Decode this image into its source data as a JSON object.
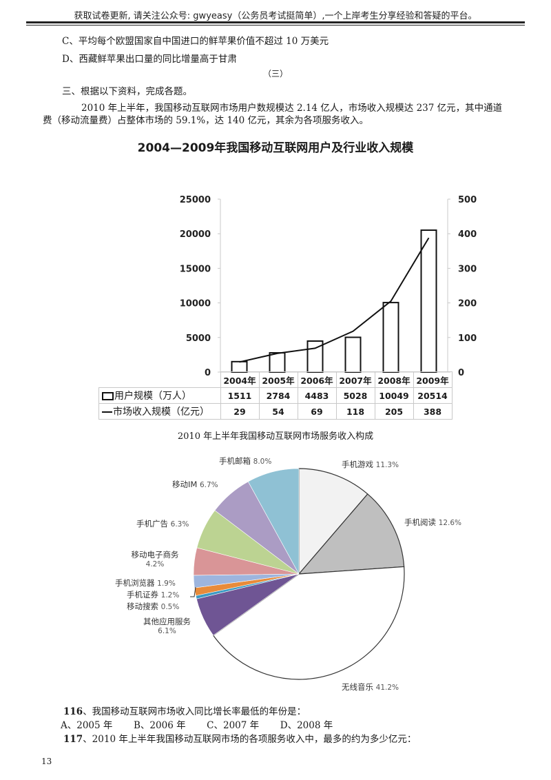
{
  "header": {
    "notice": "获取试卷更新, 请关注公众号: gwyeasy（公务员考试挺简单）,一个上岸考生分享经验和答疑的平台。"
  },
  "prev_options": {
    "c": "C、平均每个欧盟国家自中国进口的鲜苹果价值不超过 10 万美元",
    "d": "D、西藏鲜苹果出口量的同比增量高于甘肃"
  },
  "section": {
    "number": "（三）",
    "instruction": "三、根据以下资料，完成各题。",
    "para_line1": "2010 年上半年，我国移动互联网市场用户数规模达 2.14 亿人，市场收入规模达 237 亿元，其中通道",
    "para_line2": "费（移动流量费）占整体市场的 59.1%，达 140 亿元，其余为各项服务收入。"
  },
  "chart_data": [
    {
      "type": "bar+line",
      "title": "2004—2009年我国移动互联网用户及行业收入规模",
      "categories": [
        "2004年",
        "2005年",
        "2006年",
        "2007年",
        "2008年",
        "2009年"
      ],
      "series": [
        {
          "name": "用户规模（万人）",
          "kind": "bar",
          "axis": "left",
          "values": [
            1511,
            2784,
            4483,
            5028,
            10049,
            20514
          ]
        },
        {
          "name": "市场收入规模（亿元）",
          "kind": "line",
          "axis": "right",
          "values": [
            29,
            54,
            69,
            118,
            205,
            388
          ]
        }
      ],
      "left_axis": {
        "ticks": [
          "25000",
          "20000",
          "15000",
          "10000",
          "5000",
          "0"
        ],
        "ylim": [
          0,
          25000
        ]
      },
      "right_axis": {
        "ticks": [
          "500",
          "400",
          "300",
          "200",
          "100",
          "0"
        ],
        "ylim": [
          0,
          500
        ]
      },
      "data_table": {
        "row_labels": [
          "用户规模（万人）",
          "市场收入规模（亿元）"
        ],
        "rows": [
          [
            "1511",
            "2784",
            "4483",
            "5028",
            "10049",
            "20514"
          ],
          [
            "29",
            "54",
            "69",
            "118",
            "205",
            "388"
          ]
        ]
      }
    },
    {
      "type": "pie",
      "title": "2010 年上半年我国移动互联网市场服务收入构成",
      "slices": [
        {
          "label": "手机游戏",
          "pct": "11.3%",
          "value": 11.3,
          "color": "#f2f2f2"
        },
        {
          "label": "手机阅读",
          "pct": "12.6%",
          "value": 12.6,
          "color": "#bfbfbf"
        },
        {
          "label": "无线音乐",
          "pct": "41.2%",
          "value": 41.2,
          "color": "#ffffff"
        },
        {
          "label": "其他应用服务",
          "pct": "6.1%",
          "value": 6.1,
          "color": "#6f5594"
        },
        {
          "label": "移动搜索",
          "pct": "0.5%",
          "value": 0.5,
          "color": "#3b9ac4"
        },
        {
          "label": "手机证券",
          "pct": "1.2%",
          "value": 1.2,
          "color": "#e88b3a"
        },
        {
          "label": "手机浏览器",
          "pct": "1.9%",
          "value": 1.9,
          "color": "#9db5de"
        },
        {
          "label": "移动电子商务",
          "pct": "4.2%",
          "value": 4.2,
          "color": "#d99597"
        },
        {
          "label": "手机广告",
          "pct": "6.3%",
          "value": 6.3,
          "color": "#bcd392"
        },
        {
          "label": "移动IM",
          "pct": "6.7%",
          "value": 6.7,
          "color": "#ab9cc4"
        },
        {
          "label": "手机邮箱",
          "pct": "8.0%",
          "value": 8.0,
          "color": "#8fc1d4"
        }
      ]
    }
  ],
  "questions": [
    {
      "number": "116",
      "text": "、我国移动互联网市场收入同比增长率最低的年份是：",
      "options": [
        "A、2005 年",
        "B、2006 年",
        "C、2007 年",
        "D、2008 年"
      ]
    },
    {
      "number": "117",
      "text": "、2010 年上半年我国移动互联网市场的各项服务收入中，最多的约为多少亿元："
    }
  ],
  "footer": {
    "page_number": "13"
  }
}
